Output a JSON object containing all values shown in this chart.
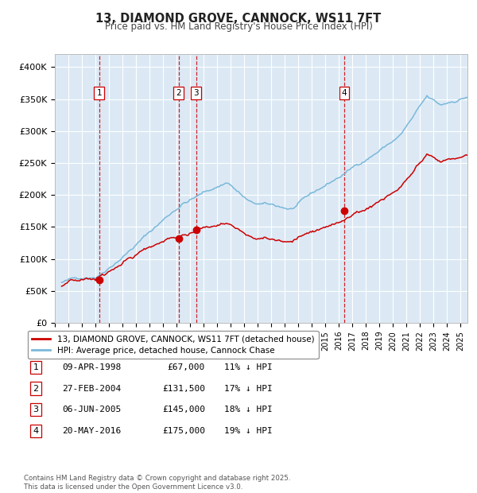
{
  "title": "13, DIAMOND GROVE, CANNOCK, WS11 7FT",
  "subtitle": "Price paid vs. HM Land Registry's House Price Index (HPI)",
  "legend_label_red": "13, DIAMOND GROVE, CANNOCK, WS11 7FT (detached house)",
  "legend_label_blue": "HPI: Average price, detached house, Cannock Chase",
  "footer": "Contains HM Land Registry data © Crown copyright and database right 2025.\nThis data is licensed under the Open Government Licence v3.0.",
  "transactions": [
    {
      "num": 1,
      "date": "09-APR-1998",
      "price": 67000,
      "pct": "11% ↓ HPI"
    },
    {
      "num": 2,
      "date": "27-FEB-2004",
      "price": 131500,
      "pct": "17% ↓ HPI"
    },
    {
      "num": 3,
      "date": "06-JUN-2005",
      "price": 145000,
      "pct": "18% ↓ HPI"
    },
    {
      "num": 4,
      "date": "20-MAY-2016",
      "price": 175000,
      "pct": "19% ↓ HPI"
    }
  ],
  "transaction_dates_decimal": [
    1998.27,
    2004.15,
    2005.44,
    2016.38
  ],
  "transaction_prices": [
    67000,
    131500,
    145000,
    175000
  ],
  "ylim": [
    0,
    420000
  ],
  "yticks": [
    0,
    50000,
    100000,
    150000,
    200000,
    250000,
    300000,
    350000,
    400000
  ],
  "ytick_labels": [
    "£0",
    "£50K",
    "£100K",
    "£150K",
    "£200K",
    "£250K",
    "£300K",
    "£350K",
    "£400K"
  ],
  "xstart": 1995.5,
  "xend": 2025.5,
  "plot_bg": "#dce9f5",
  "grid_color": "#ffffff",
  "red_color": "#cc0000",
  "blue_color": "#7ab8d9",
  "vline_color": "#cc0000",
  "title_color": "#222222",
  "subtitle_color": "#444444"
}
